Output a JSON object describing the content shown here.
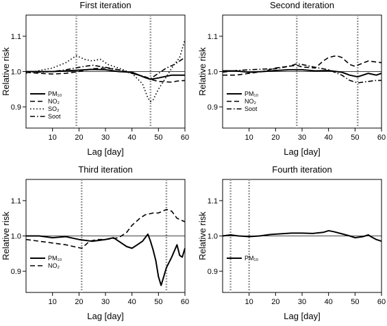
{
  "chart_data": [
    {
      "type": "line",
      "title": "First iteration",
      "xlabel": "Lag [day]",
      "ylabel": "Relative risk",
      "xlim": [
        0,
        60
      ],
      "ylim": [
        0.84,
        1.16
      ],
      "xticks": [
        "10",
        "20",
        "30",
        "40",
        "50",
        "60"
      ],
      "yticks": [
        "0.9",
        "1.0",
        "1.1"
      ],
      "reference_line": 1.0,
      "vlines": [
        19,
        47
      ],
      "legend": [
        "PM₁₀",
        "NO₂",
        "SO₂",
        "Soot"
      ],
      "series": [
        {
          "name": "PM₁₀",
          "style": "solid",
          "x": [
            0,
            5,
            10,
            15,
            20,
            25,
            30,
            35,
            40,
            45,
            47,
            50,
            55,
            60
          ],
          "y": [
            1.0,
            1.0,
            1.0,
            1.002,
            1.004,
            1.006,
            1.005,
            1.0,
            0.998,
            0.983,
            0.978,
            0.982,
            0.99,
            0.99
          ]
        },
        {
          "name": "NO₂",
          "style": "dashed",
          "x": [
            0,
            5,
            10,
            15,
            20,
            25,
            30,
            35,
            40,
            45,
            47,
            50,
            55,
            57,
            60
          ],
          "y": [
            0.998,
            0.995,
            0.993,
            0.995,
            1.0,
            1.008,
            1.01,
            1.005,
            0.995,
            0.985,
            0.978,
            0.972,
            0.97,
            0.973,
            0.975
          ]
        },
        {
          "name": "SO₂",
          "style": "dotted",
          "x": [
            0,
            5,
            10,
            15,
            19,
            22,
            25,
            28,
            31,
            35,
            40,
            44,
            46,
            47,
            48,
            50,
            53,
            55,
            58,
            60
          ],
          "y": [
            0.995,
            1.003,
            1.01,
            1.025,
            1.045,
            1.035,
            1.03,
            1.035,
            1.02,
            1.01,
            0.995,
            0.965,
            0.925,
            0.915,
            0.92,
            0.95,
            0.985,
            1.01,
            1.04,
            1.09
          ]
        },
        {
          "name": "Soot",
          "style": "dashdot",
          "x": [
            0,
            5,
            10,
            15,
            20,
            25,
            30,
            35,
            40,
            45,
            47,
            50,
            53,
            56,
            60
          ],
          "y": [
            1.0,
            0.998,
            1.0,
            1.005,
            1.012,
            1.018,
            1.012,
            1.005,
            0.995,
            0.985,
            0.98,
            0.995,
            1.01,
            1.02,
            1.04
          ]
        }
      ]
    },
    {
      "type": "line",
      "title": "Second iteration",
      "xlabel": "Lag [day]",
      "ylabel": "Relative risk",
      "xlim": [
        0,
        60
      ],
      "ylim": [
        0.84,
        1.16
      ],
      "xticks": [
        "10",
        "20",
        "30",
        "40",
        "50",
        "60"
      ],
      "yticks": [
        "0.9",
        "1.0",
        "1.1"
      ],
      "reference_line": 1.0,
      "vlines": [
        28,
        51
      ],
      "legend": [
        "PM₁₀",
        "NO₂",
        "Soot"
      ],
      "series": [
        {
          "name": "PM₁₀",
          "style": "solid",
          "x": [
            0,
            5,
            10,
            15,
            20,
            25,
            30,
            35,
            40,
            45,
            48,
            51,
            55,
            58,
            60
          ],
          "y": [
            1.002,
            1.002,
            0.998,
            1.0,
            1.003,
            1.005,
            1.005,
            1.002,
            1.003,
            0.998,
            0.99,
            0.985,
            0.995,
            0.99,
            0.995
          ]
        },
        {
          "name": "NO₂",
          "style": "dashed",
          "x": [
            0,
            5,
            10,
            15,
            20,
            25,
            28,
            30,
            35,
            38,
            40,
            43,
            45,
            48,
            50,
            55,
            60
          ],
          "y": [
            0.99,
            0.99,
            0.995,
            1.0,
            1.01,
            1.015,
            1.018,
            1.013,
            1.01,
            1.03,
            1.04,
            1.045,
            1.04,
            1.02,
            1.015,
            1.03,
            1.025
          ]
        },
        {
          "name": "Soot",
          "style": "dashdot",
          "x": [
            0,
            5,
            10,
            15,
            20,
            25,
            28,
            30,
            35,
            40,
            45,
            48,
            51,
            55,
            58,
            60
          ],
          "y": [
            0.998,
            1.003,
            1.005,
            1.007,
            1.008,
            1.015,
            1.022,
            1.02,
            1.012,
            1.005,
            0.99,
            0.975,
            0.968,
            0.972,
            0.975,
            0.975
          ]
        }
      ]
    },
    {
      "type": "line",
      "title": "Third iteration",
      "xlabel": "Lag [day]",
      "ylabel": "Relative risk",
      "xlim": [
        0,
        60
      ],
      "ylim": [
        0.84,
        1.16
      ],
      "xticks": [
        "10",
        "20",
        "30",
        "40",
        "50",
        "60"
      ],
      "yticks": [
        "0.9",
        "1.0",
        "1.1"
      ],
      "reference_line": 1.0,
      "vlines": [
        21,
        53
      ],
      "legend": [
        "PM₁₀",
        "NO₂"
      ],
      "series": [
        {
          "name": "PM₁₀",
          "style": "solid",
          "x": [
            0,
            5,
            10,
            15,
            20,
            25,
            30,
            33,
            35,
            38,
            40,
            42,
            44,
            46,
            47,
            48,
            49,
            50,
            51,
            52,
            53,
            55,
            57,
            58,
            59,
            60
          ],
          "y": [
            1.0,
            1.0,
            0.995,
            0.998,
            0.99,
            0.985,
            0.99,
            0.995,
            0.985,
            0.97,
            0.965,
            0.975,
            0.985,
            1.005,
            0.985,
            0.96,
            0.93,
            0.885,
            0.86,
            0.885,
            0.91,
            0.94,
            0.975,
            0.945,
            0.94,
            0.965
          ]
        },
        {
          "name": "NO₂",
          "style": "dashed",
          "x": [
            0,
            5,
            10,
            15,
            18,
            21,
            24,
            27,
            30,
            35,
            38,
            40,
            43,
            45,
            48,
            50,
            53,
            55,
            57,
            60
          ],
          "y": [
            0.99,
            0.985,
            0.98,
            0.975,
            0.97,
            0.965,
            0.985,
            0.99,
            0.99,
            0.995,
            1.01,
            1.03,
            1.05,
            1.06,
            1.065,
            1.065,
            1.075,
            1.07,
            1.05,
            1.04
          ]
        }
      ]
    },
    {
      "type": "line",
      "title": "Fourth iteration",
      "xlabel": "Lag [day]",
      "ylabel": "Relative risk",
      "xlim": [
        0,
        60
      ],
      "ylim": [
        0.84,
        1.16
      ],
      "xticks": [
        "10",
        "20",
        "30",
        "40",
        "50",
        "60"
      ],
      "yticks": [
        "0.9",
        "1.0",
        "1.1"
      ],
      "reference_line": 1.0,
      "vlines": [
        3,
        10
      ],
      "legend": [
        "PM₁₀"
      ],
      "series": [
        {
          "name": "PM₁₀",
          "style": "solid",
          "x": [
            0,
            3,
            6,
            10,
            14,
            18,
            22,
            26,
            30,
            34,
            38,
            40,
            42,
            45,
            48,
            50,
            53,
            55,
            56,
            58,
            60
          ],
          "y": [
            1.0,
            1.003,
            1.0,
            0.998,
            1.0,
            1.004,
            1.006,
            1.008,
            1.008,
            1.007,
            1.01,
            1.015,
            1.012,
            1.006,
            1.0,
            0.995,
            0.998,
            1.003,
            0.998,
            0.99,
            0.985
          ]
        }
      ]
    }
  ]
}
